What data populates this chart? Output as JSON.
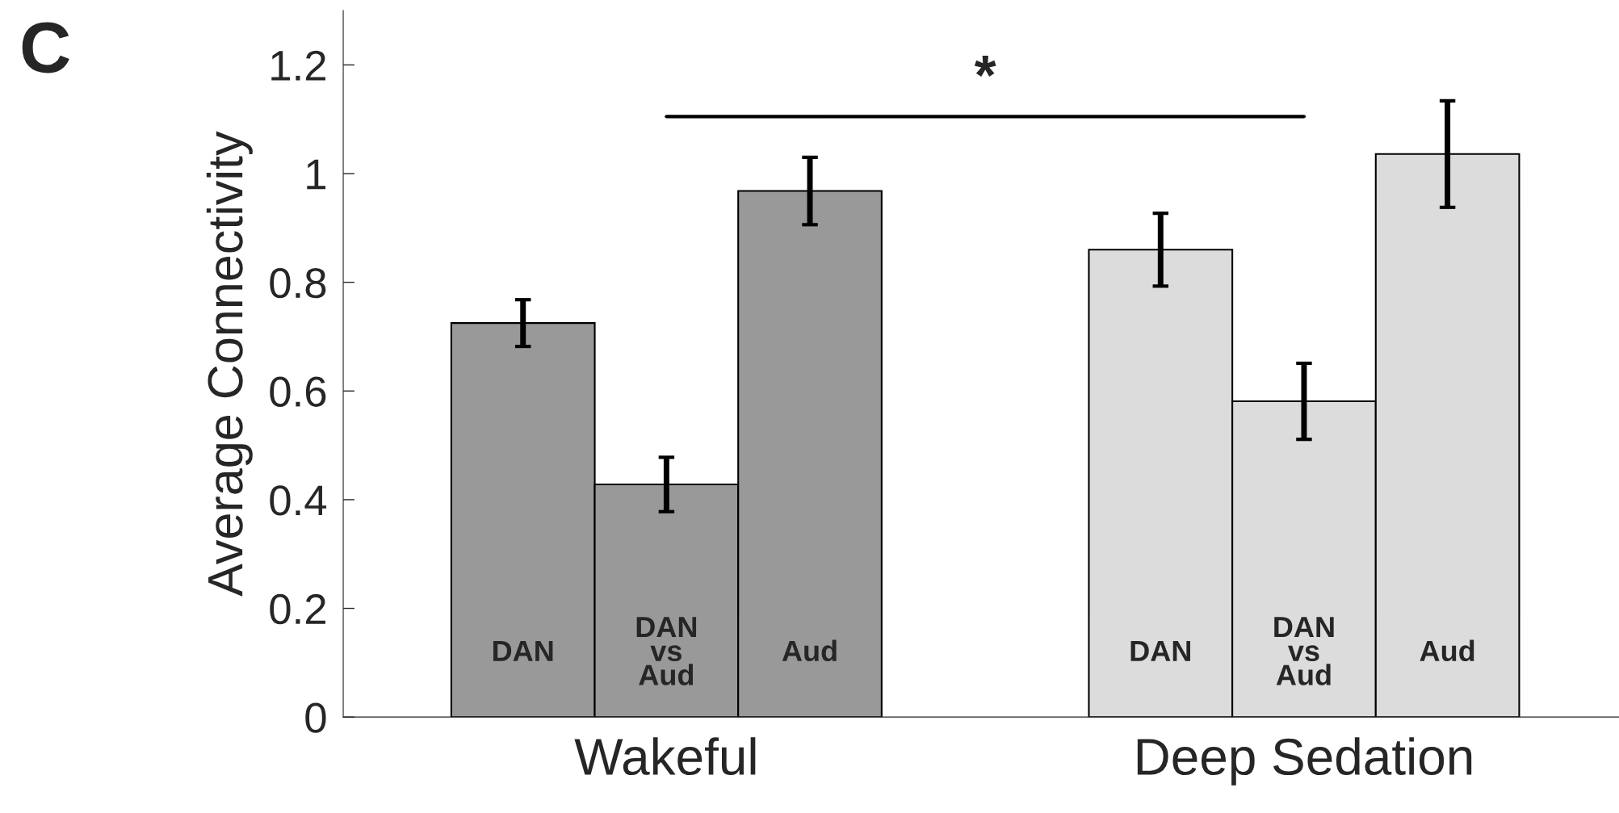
{
  "chart_data": {
    "type": "bar",
    "ylabel": "Average Connectivity",
    "categories": [
      "Wakeful",
      "Deep Sedation"
    ],
    "series": [
      {
        "name": "DAN",
        "colors": [
          "#999999",
          "#dcdcdc"
        ],
        "values": [
          0.725,
          0.86
        ],
        "errors": [
          0.043,
          0.067
        ]
      },
      {
        "name": "DAN\nvs\nAud",
        "colors": [
          "#999999",
          "#dcdcdc"
        ],
        "values": [
          0.428,
          0.581
        ],
        "errors": [
          0.05,
          0.07
        ]
      },
      {
        "name": "Aud",
        "colors": [
          "#999999",
          "#dcdcdc"
        ],
        "values": [
          0.968,
          1.036
        ],
        "errors": [
          0.062,
          0.098
        ]
      }
    ],
    "ylim": [
      0,
      1.3
    ],
    "yticks": [
      0,
      0.2,
      0.4,
      0.6,
      0.8,
      1,
      1.2
    ],
    "grid": false,
    "legend": false,
    "annotations": [
      "C",
      "*"
    ]
  }
}
